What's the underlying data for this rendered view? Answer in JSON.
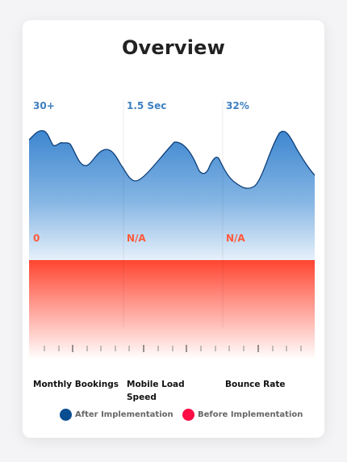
{
  "title": "Overview",
  "colors": {
    "after": "#0a4e92",
    "before": "#ff0d45",
    "after_value_text": "#3d7fc0",
    "before_value_text": "#ff5a3c"
  },
  "metrics": [
    {
      "label": "Monthly Bookings",
      "after_value": "30+",
      "before_value": "0"
    },
    {
      "label": "Mobile Load Speed",
      "after_value": "1.5 Sec",
      "before_value": "N/A"
    },
    {
      "label": "Bounce Rate",
      "after_value": "32%",
      "before_value": "N/A"
    }
  ],
  "legend": [
    {
      "label": "After Implementation",
      "color": "#0a4e92"
    },
    {
      "label": "Before Implementation",
      "color": "#ff0d45"
    }
  ]
}
